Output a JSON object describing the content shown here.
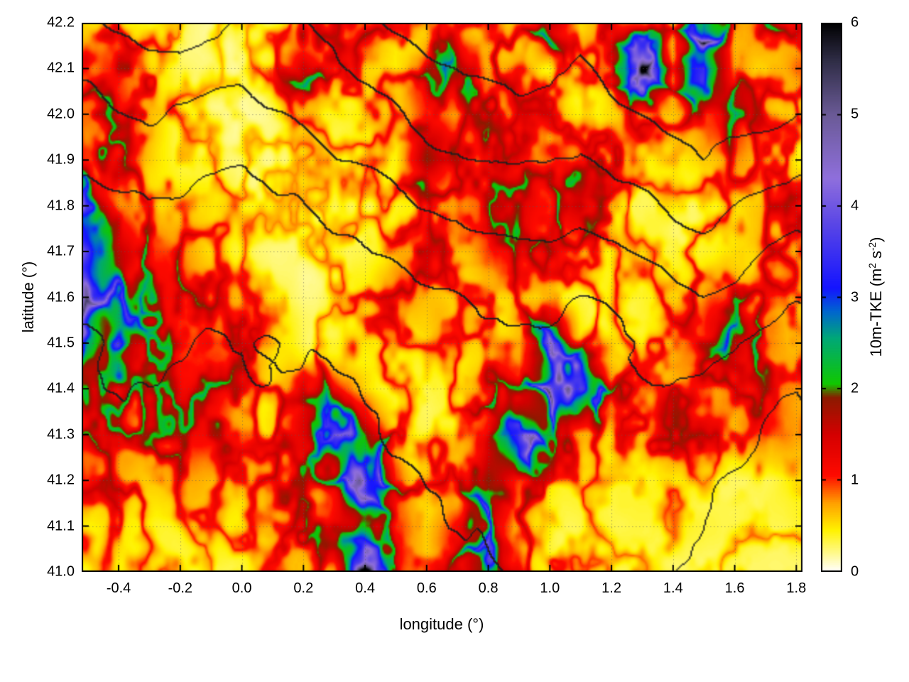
{
  "chart_data": {
    "type": "heatmap",
    "title": "",
    "xlabel": "longitude (°)",
    "ylabel": "latitude (°)",
    "x_range": [
      -0.52,
      1.82
    ],
    "y_range": [
      41.0,
      42.2
    ],
    "grid": true,
    "x_ticks": [
      {
        "label": "-0.4",
        "value": -0.4
      },
      {
        "label": "-0.2",
        "value": -0.2
      },
      {
        "label": "0.0",
        "value": 0.0
      },
      {
        "label": "0.2",
        "value": 0.2
      },
      {
        "label": "0.4",
        "value": 0.4
      },
      {
        "label": "0.6",
        "value": 0.6
      },
      {
        "label": "0.8",
        "value": 0.8
      },
      {
        "label": "1.0",
        "value": 1.0
      },
      {
        "label": "1.2",
        "value": 1.2
      },
      {
        "label": "1.4",
        "value": 1.4
      },
      {
        "label": "1.6",
        "value": 1.6
      },
      {
        "label": "1.8",
        "value": 1.8
      }
    ],
    "y_ticks": [
      {
        "label": "41.0",
        "value": 41.0
      },
      {
        "label": "41.1",
        "value": 41.1
      },
      {
        "label": "41.2",
        "value": 41.2
      },
      {
        "label": "41.3",
        "value": 41.3
      },
      {
        "label": "41.4",
        "value": 41.4
      },
      {
        "label": "41.5",
        "value": 41.5
      },
      {
        "label": "41.6",
        "value": 41.6
      },
      {
        "label": "41.7",
        "value": 41.7
      },
      {
        "label": "41.8",
        "value": 41.8
      },
      {
        "label": "41.9",
        "value": 41.9
      },
      {
        "label": "42.0",
        "value": 42.0
      },
      {
        "label": "42.1",
        "value": 42.1
      },
      {
        "label": "42.2",
        "value": 42.2
      }
    ],
    "colorbar": {
      "range": [
        0,
        6
      ],
      "ticks": [
        {
          "label": "0",
          "value": 0
        },
        {
          "label": "1",
          "value": 1
        },
        {
          "label": "2",
          "value": 2
        },
        {
          "label": "3",
          "value": 3
        },
        {
          "label": "4",
          "value": 4
        },
        {
          "label": "5",
          "value": 5
        },
        {
          "label": "6",
          "value": 6
        }
      ],
      "label_parts": {
        "prefix": "10m-TKE (m",
        "sup1": "2",
        "mid": " s",
        "sup2": "-2",
        "suffix": ")"
      }
    },
    "palette": [
      [
        0.0,
        "#ffffff"
      ],
      [
        0.45,
        "#fff200"
      ],
      [
        0.75,
        "#ffa000"
      ],
      [
        1.05,
        "#ff0a00"
      ],
      [
        1.5,
        "#d40000"
      ],
      [
        1.9,
        "#8c1a00"
      ],
      [
        2.05,
        "#10c800"
      ],
      [
        2.55,
        "#00a877"
      ],
      [
        2.85,
        "#0064d0"
      ],
      [
        3.1,
        "#1414ff"
      ],
      [
        3.8,
        "#5a46e6"
      ],
      [
        4.3,
        "#8f6fdc"
      ],
      [
        5.0,
        "#6a5a96"
      ],
      [
        5.6,
        "#2e2c44"
      ],
      [
        6.0,
        "#000000"
      ]
    ],
    "heatmap": {
      "units": "m2 s-2",
      "lon_start": -0.5,
      "lon_step": 0.1,
      "lat_start": 42.2,
      "lat_step": -0.1,
      "values": [
        [
          0.5,
          0.6,
          0.4,
          0.3,
          0.2,
          0.3,
          0.4,
          0.5,
          0.9,
          1.1,
          0.5,
          0.4,
          0.5,
          0.8,
          0.6,
          2.5,
          0.6,
          0.7,
          0.8,
          0.6,
          3.0,
          0.8,
          1.5,
          0.7
        ],
        [
          0.8,
          1.0,
          0.6,
          0.4,
          0.3,
          0.3,
          0.6,
          2.0,
          0.8,
          0.6,
          0.5,
          1.0,
          1.8,
          0.9,
          1.2,
          0.6,
          0.5,
          0.6,
          3.5,
          0.8,
          4.2,
          1.0,
          0.8,
          0.9
        ],
        [
          1.2,
          1.3,
          0.9,
          0.5,
          0.3,
          0.2,
          0.3,
          0.5,
          0.4,
          0.5,
          0.6,
          1.1,
          0.7,
          1.0,
          0.8,
          0.7,
          0.5,
          0.6,
          0.8,
          0.6,
          1.0,
          1.2,
          0.6,
          0.5
        ],
        [
          1.4,
          1.2,
          0.8,
          0.5,
          0.4,
          0.3,
          0.3,
          0.3,
          0.4,
          0.5,
          0.6,
          1.8,
          0.7,
          1.2,
          0.9,
          0.6,
          0.8,
          1.0,
          0.6,
          0.5,
          0.6,
          0.8,
          0.5,
          0.6
        ],
        [
          2.5,
          1.0,
          0.6,
          0.5,
          0.5,
          0.4,
          0.3,
          0.3,
          0.3,
          0.4,
          0.5,
          0.6,
          0.8,
          1.0,
          1.3,
          1.0,
          1.8,
          0.6,
          0.4,
          0.4,
          0.5,
          0.6,
          0.8,
          1.0
        ],
        [
          3.5,
          1.8,
          1.2,
          0.8,
          0.5,
          0.4,
          0.3,
          0.3,
          0.4,
          0.5,
          0.8,
          1.0,
          0.6,
          0.8,
          1.0,
          0.9,
          0.6,
          0.5,
          0.4,
          0.5,
          0.6,
          0.7,
          0.9,
          0.7
        ],
        [
          2.8,
          2.2,
          1.4,
          1.2,
          0.9,
          0.6,
          0.4,
          0.3,
          0.4,
          0.6,
          0.8,
          0.6,
          0.5,
          0.6,
          0.7,
          0.6,
          0.5,
          0.6,
          0.5,
          0.6,
          0.8,
          1.2,
          0.8,
          0.6
        ],
        [
          2.0,
          2.5,
          1.5,
          1.3,
          1.1,
          0.7,
          0.5,
          0.4,
          0.4,
          0.5,
          0.5,
          0.5,
          0.5,
          0.6,
          0.8,
          2.8,
          0.8,
          0.6,
          0.5,
          0.6,
          1.0,
          2.0,
          1.2,
          0.7
        ],
        [
          1.2,
          1.4,
          1.4,
          1.3,
          1.2,
          0.9,
          0.6,
          1.0,
          1.2,
          0.7,
          0.5,
          0.5,
          0.6,
          1.0,
          1.2,
          3.5,
          4.0,
          1.2,
          0.6,
          0.8,
          0.8,
          0.7,
          0.9,
          0.8
        ],
        [
          1.0,
          1.3,
          1.3,
          1.2,
          1.0,
          0.7,
          0.8,
          1.5,
          2.0,
          2.5,
          0.8,
          0.5,
          0.6,
          1.5,
          4.0,
          1.5,
          0.8,
          0.6,
          0.7,
          1.0,
          0.8,
          0.6,
          1.0,
          0.7
        ],
        [
          0.8,
          0.9,
          0.8,
          0.7,
          0.6,
          0.5,
          0.8,
          1.2,
          1.5,
          3.0,
          1.2,
          0.7,
          0.8,
          2.5,
          1.2,
          0.7,
          0.5,
          0.4,
          0.4,
          0.4,
          0.3,
          0.3,
          0.3,
          0.4
        ],
        [
          0.5,
          0.6,
          0.5,
          0.4,
          0.4,
          0.4,
          0.6,
          1.0,
          1.8,
          1.5,
          1.0,
          0.6,
          1.2,
          2.0,
          0.8,
          0.5,
          0.4,
          0.3,
          0.3,
          0.3,
          0.3,
          0.3,
          0.3,
          0.3
        ],
        [
          0.4,
          0.5,
          0.4,
          0.3,
          0.3,
          0.4,
          0.5,
          0.8,
          1.0,
          4.0,
          0.8,
          0.5,
          1.0,
          3.0,
          1.0,
          0.5,
          0.4,
          0.3,
          0.3,
          0.3,
          0.3,
          0.3,
          0.3,
          0.3
        ]
      ]
    },
    "contours": {
      "color": "#1e1e1e",
      "levels": [
        350,
        550,
        750,
        950,
        1150
      ],
      "field": {
        "lon_start": -0.5,
        "lon_step": 0.1,
        "lat_start": 42.2,
        "lat_step": -0.1,
        "values": [
          [
            900,
            950,
            1000,
            1000,
            950,
            900,
            950,
            1000,
            1100,
            1200,
            1250,
            1300,
            1300,
            1350,
            1400,
            1400,
            1350,
            1400,
            1450,
            1500,
            1550,
            1500,
            1450,
            1400
          ],
          [
            800,
            850,
            900,
            900,
            850,
            820,
            850,
            900,
            1000,
            1050,
            1100,
            1150,
            1150,
            1200,
            1250,
            1250,
            1200,
            1250,
            1300,
            1350,
            1400,
            1350,
            1300,
            1250
          ],
          [
            700,
            750,
            800,
            780,
            750,
            720,
            750,
            800,
            850,
            900,
            950,
            1000,
            1000,
            1050,
            1100,
            1100,
            1050,
            1100,
            1150,
            1200,
            1250,
            1200,
            1150,
            1100
          ],
          [
            600,
            650,
            700,
            680,
            650,
            620,
            650,
            700,
            750,
            780,
            800,
            850,
            850,
            900,
            950,
            950,
            900,
            950,
            1000,
            1050,
            1100,
            1050,
            1000,
            950
          ],
          [
            500,
            550,
            600,
            580,
            550,
            520,
            540,
            580,
            620,
            650,
            680,
            700,
            700,
            750,
            800,
            800,
            780,
            800,
            850,
            900,
            950,
            900,
            850,
            800
          ],
          [
            420,
            450,
            500,
            480,
            450,
            430,
            450,
            480,
            520,
            550,
            570,
            600,
            600,
            640,
            680,
            700,
            680,
            700,
            750,
            800,
            820,
            780,
            720,
            650
          ],
          [
            350,
            380,
            420,
            400,
            380,
            360,
            380,
            400,
            430,
            460,
            480,
            500,
            510,
            550,
            580,
            600,
            600,
            620,
            650,
            700,
            720,
            680,
            600,
            520
          ],
          [
            300,
            320,
            350,
            330,
            310,
            300,
            320,
            340,
            370,
            400,
            420,
            440,
            450,
            480,
            520,
            550,
            560,
            580,
            600,
            620,
            620,
            580,
            500,
            420
          ],
          [
            280,
            300,
            320,
            300,
            280,
            270,
            290,
            310,
            340,
            360,
            380,
            400,
            420,
            450,
            480,
            520,
            540,
            560,
            560,
            560,
            540,
            500,
            420,
            340
          ],
          [
            260,
            280,
            300,
            280,
            260,
            250,
            270,
            290,
            320,
            340,
            360,
            380,
            400,
            430,
            460,
            500,
            520,
            530,
            520,
            500,
            460,
            420,
            350,
            260
          ],
          [
            240,
            260,
            280,
            260,
            240,
            230,
            250,
            270,
            300,
            320,
            340,
            360,
            380,
            410,
            440,
            470,
            480,
            480,
            460,
            430,
            390,
            340,
            280,
            200
          ],
          [
            220,
            240,
            260,
            240,
            220,
            210,
            230,
            250,
            280,
            300,
            320,
            340,
            360,
            390,
            410,
            430,
            440,
            430,
            400,
            370,
            330,
            280,
            220,
            150
          ],
          [
            200,
            220,
            240,
            220,
            200,
            190,
            210,
            230,
            260,
            280,
            300,
            320,
            340,
            360,
            380,
            390,
            390,
            380,
            350,
            320,
            280,
            230,
            170,
            100
          ]
        ]
      }
    }
  }
}
